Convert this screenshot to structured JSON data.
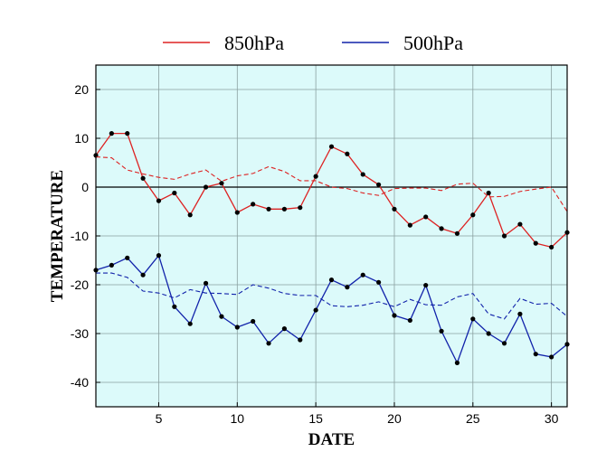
{
  "chart_data": {
    "type": "line",
    "xlabel": "DATE",
    "ylabel": "TEMPERATURE",
    "xlim": [
      1,
      31
    ],
    "ylim": [
      -45,
      25
    ],
    "x_ticks": [
      5,
      10,
      15,
      20,
      25,
      30
    ],
    "y_ticks": [
      20,
      10,
      0,
      -10,
      -20,
      -30,
      -40
    ],
    "grid": true,
    "legend_position": "top-center",
    "zero_line": true,
    "plot_background": "#dcfafa",
    "x": [
      1,
      2,
      3,
      4,
      5,
      6,
      7,
      8,
      9,
      10,
      11,
      12,
      13,
      14,
      15,
      16,
      17,
      18,
      19,
      20,
      21,
      22,
      23,
      24,
      25,
      26,
      27,
      28,
      29,
      30,
      31
    ],
    "series": [
      {
        "name": "850hPa",
        "color": "#dd2222",
        "style": "solid-markers",
        "values": [
          6.5,
          11,
          11,
          1.8,
          -2.8,
          -1.2,
          -5.7,
          0,
          0.8,
          -5.2,
          -3.5,
          -4.5,
          -4.5,
          -4.2,
          2.2,
          8.3,
          6.8,
          2.6,
          0.5,
          -4.5,
          -7.8,
          -6.1,
          -8.5,
          -9.5,
          -5.7,
          -1.2,
          -10,
          -7.6,
          -11.5,
          -12.3,
          -9.3
        ]
      },
      {
        "name": "",
        "legend": false,
        "color": "#dd2222",
        "style": "dashed",
        "values": [
          6.2,
          6,
          3.5,
          2.7,
          2,
          1.6,
          2.7,
          3.5,
          1.2,
          2.3,
          2.8,
          4.2,
          3.2,
          1.3,
          1.3,
          0,
          -0.3,
          -1.2,
          -1.7,
          -0.3,
          -0.2,
          -0.2,
          -0.7,
          0.6,
          0.8,
          -2,
          -1.9,
          -0.9,
          -0.4,
          0,
          -5
        ]
      },
      {
        "name": "500hPa",
        "color": "#1122aa",
        "style": "solid-markers",
        "values": [
          -17,
          -16,
          -14.5,
          -18,
          -14,
          -24.5,
          -28,
          -19.7,
          -26.5,
          -28.7,
          -27.5,
          -32,
          -29,
          -31.3,
          -25.2,
          -19,
          -20.5,
          -18,
          -19.5,
          -26.3,
          -27.3,
          -20.1,
          -29.5,
          -36,
          -27,
          -30,
          -32,
          -26,
          -34.2,
          -34.8,
          -32.2
        ]
      },
      {
        "name": "",
        "legend": false,
        "color": "#1122aa",
        "style": "dashed",
        "values": [
          -17.6,
          -17.6,
          -18.5,
          -21.3,
          -21.7,
          -22.7,
          -21,
          -21.7,
          -21.8,
          -22,
          -20,
          -20.7,
          -21.8,
          -22.2,
          -22.2,
          -24.3,
          -24.5,
          -24.2,
          -23.5,
          -24.5,
          -23,
          -24.1,
          -24.2,
          -22.5,
          -21.8,
          -26,
          -27,
          -22.8,
          -24,
          -23.8,
          -26.5
        ]
      }
    ]
  }
}
